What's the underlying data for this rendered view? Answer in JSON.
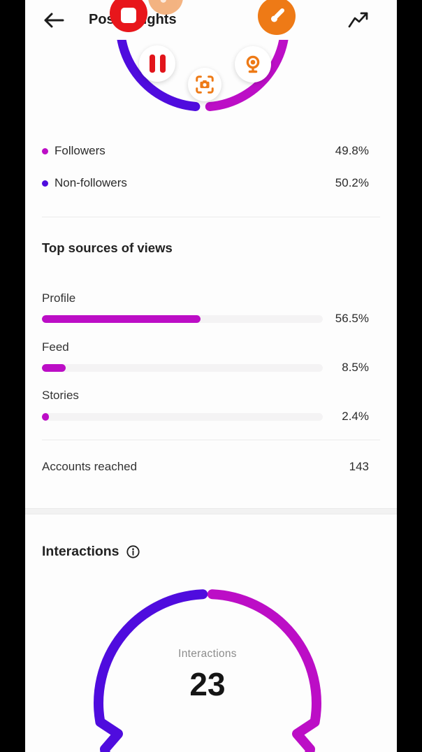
{
  "header": {
    "title": "Post Insights"
  },
  "icons": {
    "back": "arrow-left-icon",
    "trend": "trending-up-icon",
    "stop": "stop-record-icon",
    "ghost": "paintbrush-faded-icon",
    "brush": "paintbrush-icon",
    "pause": "pause-icon",
    "screenshot": "camera-scan-icon",
    "webcam": "webcam-icon",
    "info": "info-icon"
  },
  "colors": {
    "purple": "#4F0CDE",
    "magenta": "#BC0EC6",
    "record_red": "#E8161B",
    "overlay_orange": "#EE7A16",
    "text_dark": "#2b2b2b",
    "text_gray": "#8c8c8c"
  },
  "audience": {
    "chart": {
      "type": "donut",
      "series": [
        {
          "label": "Followers",
          "pct": 49.8,
          "color": "#BC0EC6"
        },
        {
          "label": "Non-followers",
          "pct": 50.2,
          "color": "#4F0CDE"
        }
      ]
    },
    "legend": [
      {
        "label": "Followers",
        "value": "49.8%"
      },
      {
        "label": "Non-followers",
        "value": "50.2%"
      }
    ]
  },
  "top_sources": {
    "title": "Top sources of views",
    "rows": [
      {
        "label": "Profile",
        "value": "56.5%",
        "pct": 56.5
      },
      {
        "label": "Feed",
        "value": "8.5%",
        "pct": 8.5
      },
      {
        "label": "Stories",
        "value": "2.4%",
        "pct": 2.4
      }
    ]
  },
  "accounts_reached": {
    "label": "Accounts reached",
    "value": "143"
  },
  "interactions": {
    "title": "Interactions",
    "chart": {
      "type": "donut",
      "center_label": "Interactions",
      "center_value": "23",
      "colors": [
        "#4F0CDE",
        "#BC0EC6"
      ]
    }
  }
}
